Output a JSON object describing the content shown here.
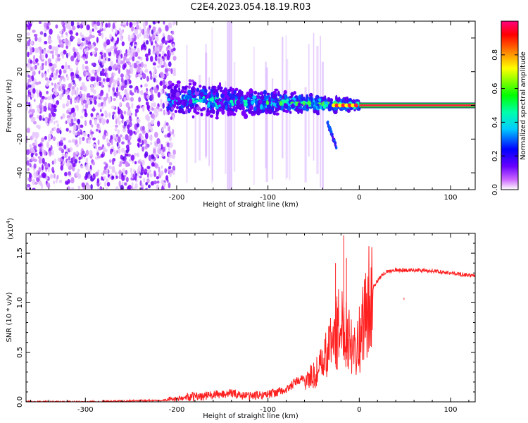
{
  "title": "C2E4.2023.054.18.19.R03",
  "chart_data": [
    {
      "type": "heatmap",
      "xlabel": "Height of straight line (km)",
      "ylabel": "Frequency (Hz)",
      "xlim": [
        -365,
        127
      ],
      "ylim": [
        -50,
        50
      ],
      "xticks": [
        -300,
        -200,
        -100,
        0,
        100
      ],
      "yticks": [
        -40,
        -20,
        0,
        20,
        40
      ],
      "colorbar": {
        "label": "Normalized spectral amplitude",
        "range": [
          0,
          1
        ],
        "ticks": [
          0.0,
          0.2,
          0.4,
          0.6,
          0.8
        ],
        "colormap": [
          "#ffffff",
          "#cc66ff",
          "#6600ff",
          "#0000ff",
          "#00ffff",
          "#00ff00",
          "#ffff00",
          "#ff0000",
          "#ff0080"
        ]
      },
      "features": {
        "noise_region_km": [
          -365,
          -210
        ],
        "signal_band_km": [
          -210,
          0
        ],
        "signal_band_center_hz": [
          4,
          0
        ],
        "tail_feature_km": [
          -35,
          -25
        ],
        "tail_feature_hz": [
          -10,
          -25
        ],
        "steady_carrier_km": [
          0,
          127
        ],
        "steady_carrier_hz": 0
      }
    },
    {
      "type": "line",
      "xlabel": "Height of straight line (km)",
      "ylabel": "SNR (10 * v/v)",
      "multiplier": "(x10^4)",
      "multiplier_base": "(x10",
      "multiplier_exp": "4",
      "multiplier_close": ")",
      "xlim": [
        -365,
        127
      ],
      "ylim": [
        0,
        1.7
      ],
      "xticks": [
        -300,
        -200,
        -100,
        0,
        100
      ],
      "yticks": [
        0.0,
        0.5,
        1.0,
        1.5
      ],
      "line_color": "#ff2020",
      "series": [
        {
          "x": [
            -365,
            -300,
            -250,
            -200,
            -190,
            -170,
            -150,
            -140,
            -130,
            -120,
            -100,
            -80,
            -70,
            -60,
            -50,
            -45,
            -40,
            -35,
            -30,
            -25,
            -20,
            -15,
            -10,
            -5,
            0,
            5,
            10,
            15,
            20,
            25,
            30,
            40,
            50,
            60,
            80,
            100,
            127
          ],
          "y": [
            0.0,
            0.0,
            0.01,
            0.02,
            0.03,
            0.04,
            0.06,
            0.07,
            0.05,
            0.04,
            0.06,
            0.1,
            0.18,
            0.22,
            0.26,
            0.32,
            0.38,
            0.5,
            0.62,
            0.7,
            0.78,
            0.75,
            0.65,
            0.58,
            0.62,
            0.82,
            1.0,
            1.15,
            1.22,
            1.28,
            1.31,
            1.33,
            1.33,
            1.33,
            1.32,
            1.3,
            1.27
          ]
        }
      ],
      "spikes": [
        {
          "x": -17,
          "y": 1.68
        },
        {
          "x": -14,
          "y": 1.45
        },
        {
          "x": -26,
          "y": 1.4
        },
        {
          "x": 49,
          "y": 1.05
        }
      ]
    }
  ]
}
